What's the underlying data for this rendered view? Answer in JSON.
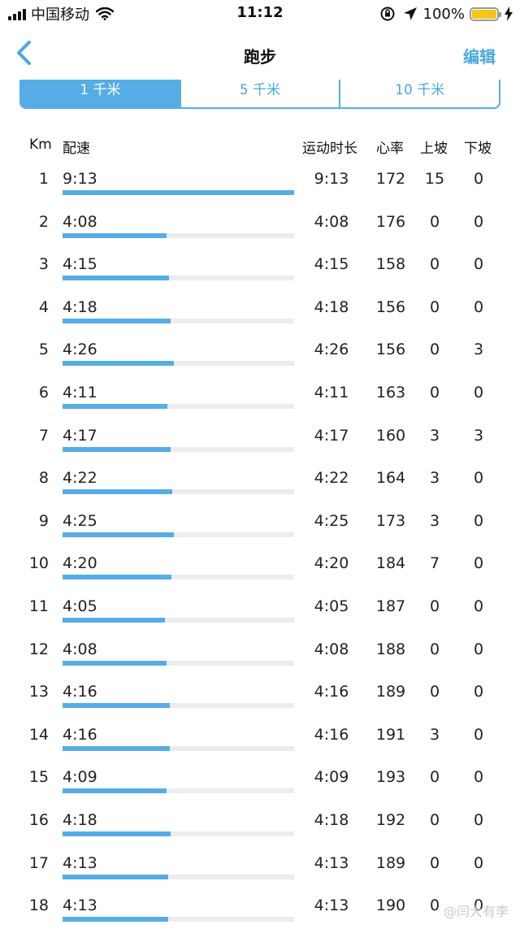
{
  "status_bar": {
    "carrier": "中国移动",
    "time": "11:12",
    "battery_percent": "100%",
    "icons": [
      "signal-icon",
      "wifi-icon",
      "rotation-lock-icon",
      "location-arrow-icon",
      "battery-icon",
      "charging-bolt-icon"
    ]
  },
  "nav": {
    "back_icon": "chevron-left-icon",
    "title": "跑步",
    "edit_label": "编辑"
  },
  "segments": [
    "1 千米",
    "5 千米",
    "10 千米"
  ],
  "segments_active": 0,
  "table": {
    "headers": {
      "km": "Km",
      "pace": "配速",
      "duration": "运动时长",
      "heart_rate": "心率",
      "uphill": "上坡",
      "downhill": "下坡"
    },
    "rows": [
      {
        "km": "1",
        "pace": "9:13",
        "duration": "9:13",
        "hr": "172",
        "up": "15",
        "down": "0",
        "bar": 1.0
      },
      {
        "km": "2",
        "pace": "4:08",
        "duration": "4:08",
        "hr": "176",
        "up": "0",
        "down": "0",
        "bar": 0.448
      },
      {
        "km": "3",
        "pace": "4:15",
        "duration": "4:15",
        "hr": "158",
        "up": "0",
        "down": "0",
        "bar": 0.461
      },
      {
        "km": "4",
        "pace": "4:18",
        "duration": "4:18",
        "hr": "156",
        "up": "0",
        "down": "0",
        "bar": 0.466
      },
      {
        "km": "5",
        "pace": "4:26",
        "duration": "4:26",
        "hr": "156",
        "up": "0",
        "down": "3",
        "bar": 0.481
      },
      {
        "km": "6",
        "pace": "4:11",
        "duration": "4:11",
        "hr": "163",
        "up": "0",
        "down": "0",
        "bar": 0.454
      },
      {
        "km": "7",
        "pace": "4:17",
        "duration": "4:17",
        "hr": "160",
        "up": "3",
        "down": "3",
        "bar": 0.465
      },
      {
        "km": "8",
        "pace": "4:22",
        "duration": "4:22",
        "hr": "164",
        "up": "3",
        "down": "0",
        "bar": 0.474
      },
      {
        "km": "9",
        "pace": "4:25",
        "duration": "4:25",
        "hr": "173",
        "up": "3",
        "down": "0",
        "bar": 0.479
      },
      {
        "km": "10",
        "pace": "4:20",
        "duration": "4:20",
        "hr": "184",
        "up": "7",
        "down": "0",
        "bar": 0.47
      },
      {
        "km": "11",
        "pace": "4:05",
        "duration": "4:05",
        "hr": "187",
        "up": "0",
        "down": "0",
        "bar": 0.443
      },
      {
        "km": "12",
        "pace": "4:08",
        "duration": "4:08",
        "hr": "188",
        "up": "0",
        "down": "0",
        "bar": 0.448
      },
      {
        "km": "13",
        "pace": "4:16",
        "duration": "4:16",
        "hr": "189",
        "up": "0",
        "down": "0",
        "bar": 0.463
      },
      {
        "km": "14",
        "pace": "4:16",
        "duration": "4:16",
        "hr": "191",
        "up": "3",
        "down": "0",
        "bar": 0.463
      },
      {
        "km": "15",
        "pace": "4:09",
        "duration": "4:09",
        "hr": "193",
        "up": "0",
        "down": "0",
        "bar": 0.45
      },
      {
        "km": "16",
        "pace": "4:18",
        "duration": "4:18",
        "hr": "192",
        "up": "0",
        "down": "0",
        "bar": 0.466
      },
      {
        "km": "17",
        "pace": "4:13",
        "duration": "4:13",
        "hr": "189",
        "up": "0",
        "down": "0",
        "bar": 0.457
      },
      {
        "km": "18",
        "pace": "4:13",
        "duration": "4:13",
        "hr": "190",
        "up": "0",
        "down": "0",
        "bar": 0.457
      }
    ]
  },
  "watermark": "@闫大有李",
  "colors": {
    "accent": "#56ade6",
    "track": "#ececf1",
    "battery": "#f5c518"
  }
}
